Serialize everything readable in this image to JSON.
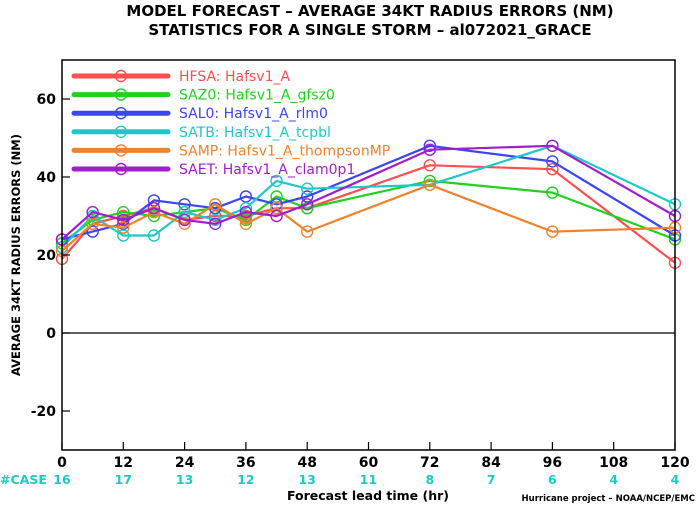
{
  "chart_data": {
    "type": "line",
    "title": "MODEL FORECAST – AVERAGE 34KT RADIUS ERRORS (NM)",
    "subtitle": "STATISTICS FOR A SINGLE STORM – al072021_GRACE",
    "xlabel": "Forecast lead time (hr)",
    "ylabel": "AVERAGE 34KT RADIUS ERRORS (NM)",
    "xlim": [
      0,
      120
    ],
    "ylim": [
      -30,
      70
    ],
    "x_ticks": [
      0,
      12,
      24,
      36,
      48,
      60,
      72,
      84,
      96,
      108,
      120
    ],
    "y_ticks": [
      -20,
      0,
      20,
      40,
      60
    ],
    "x": [
      0,
      6,
      12,
      18,
      24,
      30,
      36,
      42,
      48,
      72,
      96,
      120
    ],
    "case_label": "#CASE",
    "case_lead_times": [
      0,
      12,
      24,
      36,
      48,
      60,
      72,
      84,
      96,
      108,
      120
    ],
    "case_counts": [
      "16",
      "17",
      "13",
      "12",
      "13",
      "11",
      "8",
      "7",
      "6",
      "4",
      "4"
    ],
    "reference_line": 0,
    "credit": "Hurricane project – NOAA/NCEP/EMC",
    "legend_position": "top-left",
    "series": [
      {
        "name": "HFSA: Hafsv1_A",
        "color": "#ff4f4f",
        "values": [
          19,
          28,
          30,
          32,
          29,
          30,
          30,
          32,
          32,
          43,
          42,
          18
        ]
      },
      {
        "name": "SAZ0: Hafsv1_A_gfsz0",
        "color": "#1ed31e",
        "values": [
          23,
          29,
          31,
          30,
          31,
          32,
          29,
          35,
          32,
          39,
          36,
          24
        ]
      },
      {
        "name": "SAL0: Hafsv1_A_rlm0",
        "color": "#3c46f0",
        "values": [
          24,
          26,
          28,
          34,
          33,
          32,
          35,
          33,
          35,
          48,
          44,
          25
        ]
      },
      {
        "name": "SATB: Hafsv1_A_tcpbl",
        "color": "#1ec8c8",
        "values": [
          22,
          30,
          25,
          25,
          31,
          29,
          32,
          39,
          37,
          38,
          48,
          33
        ]
      },
      {
        "name": "SAMP: Hafsv1_A_thompsonMP",
        "color": "#f0822d",
        "values": [
          21,
          28,
          27,
          31,
          28,
          33,
          28,
          32,
          26,
          38,
          26,
          27
        ]
      },
      {
        "name": "SAET: Hafsv1_A_clam0p1",
        "color": "#a01ec8",
        "values": [
          24,
          31,
          29,
          32,
          29,
          28,
          31,
          30,
          33,
          47,
          48,
          30
        ]
      }
    ]
  }
}
